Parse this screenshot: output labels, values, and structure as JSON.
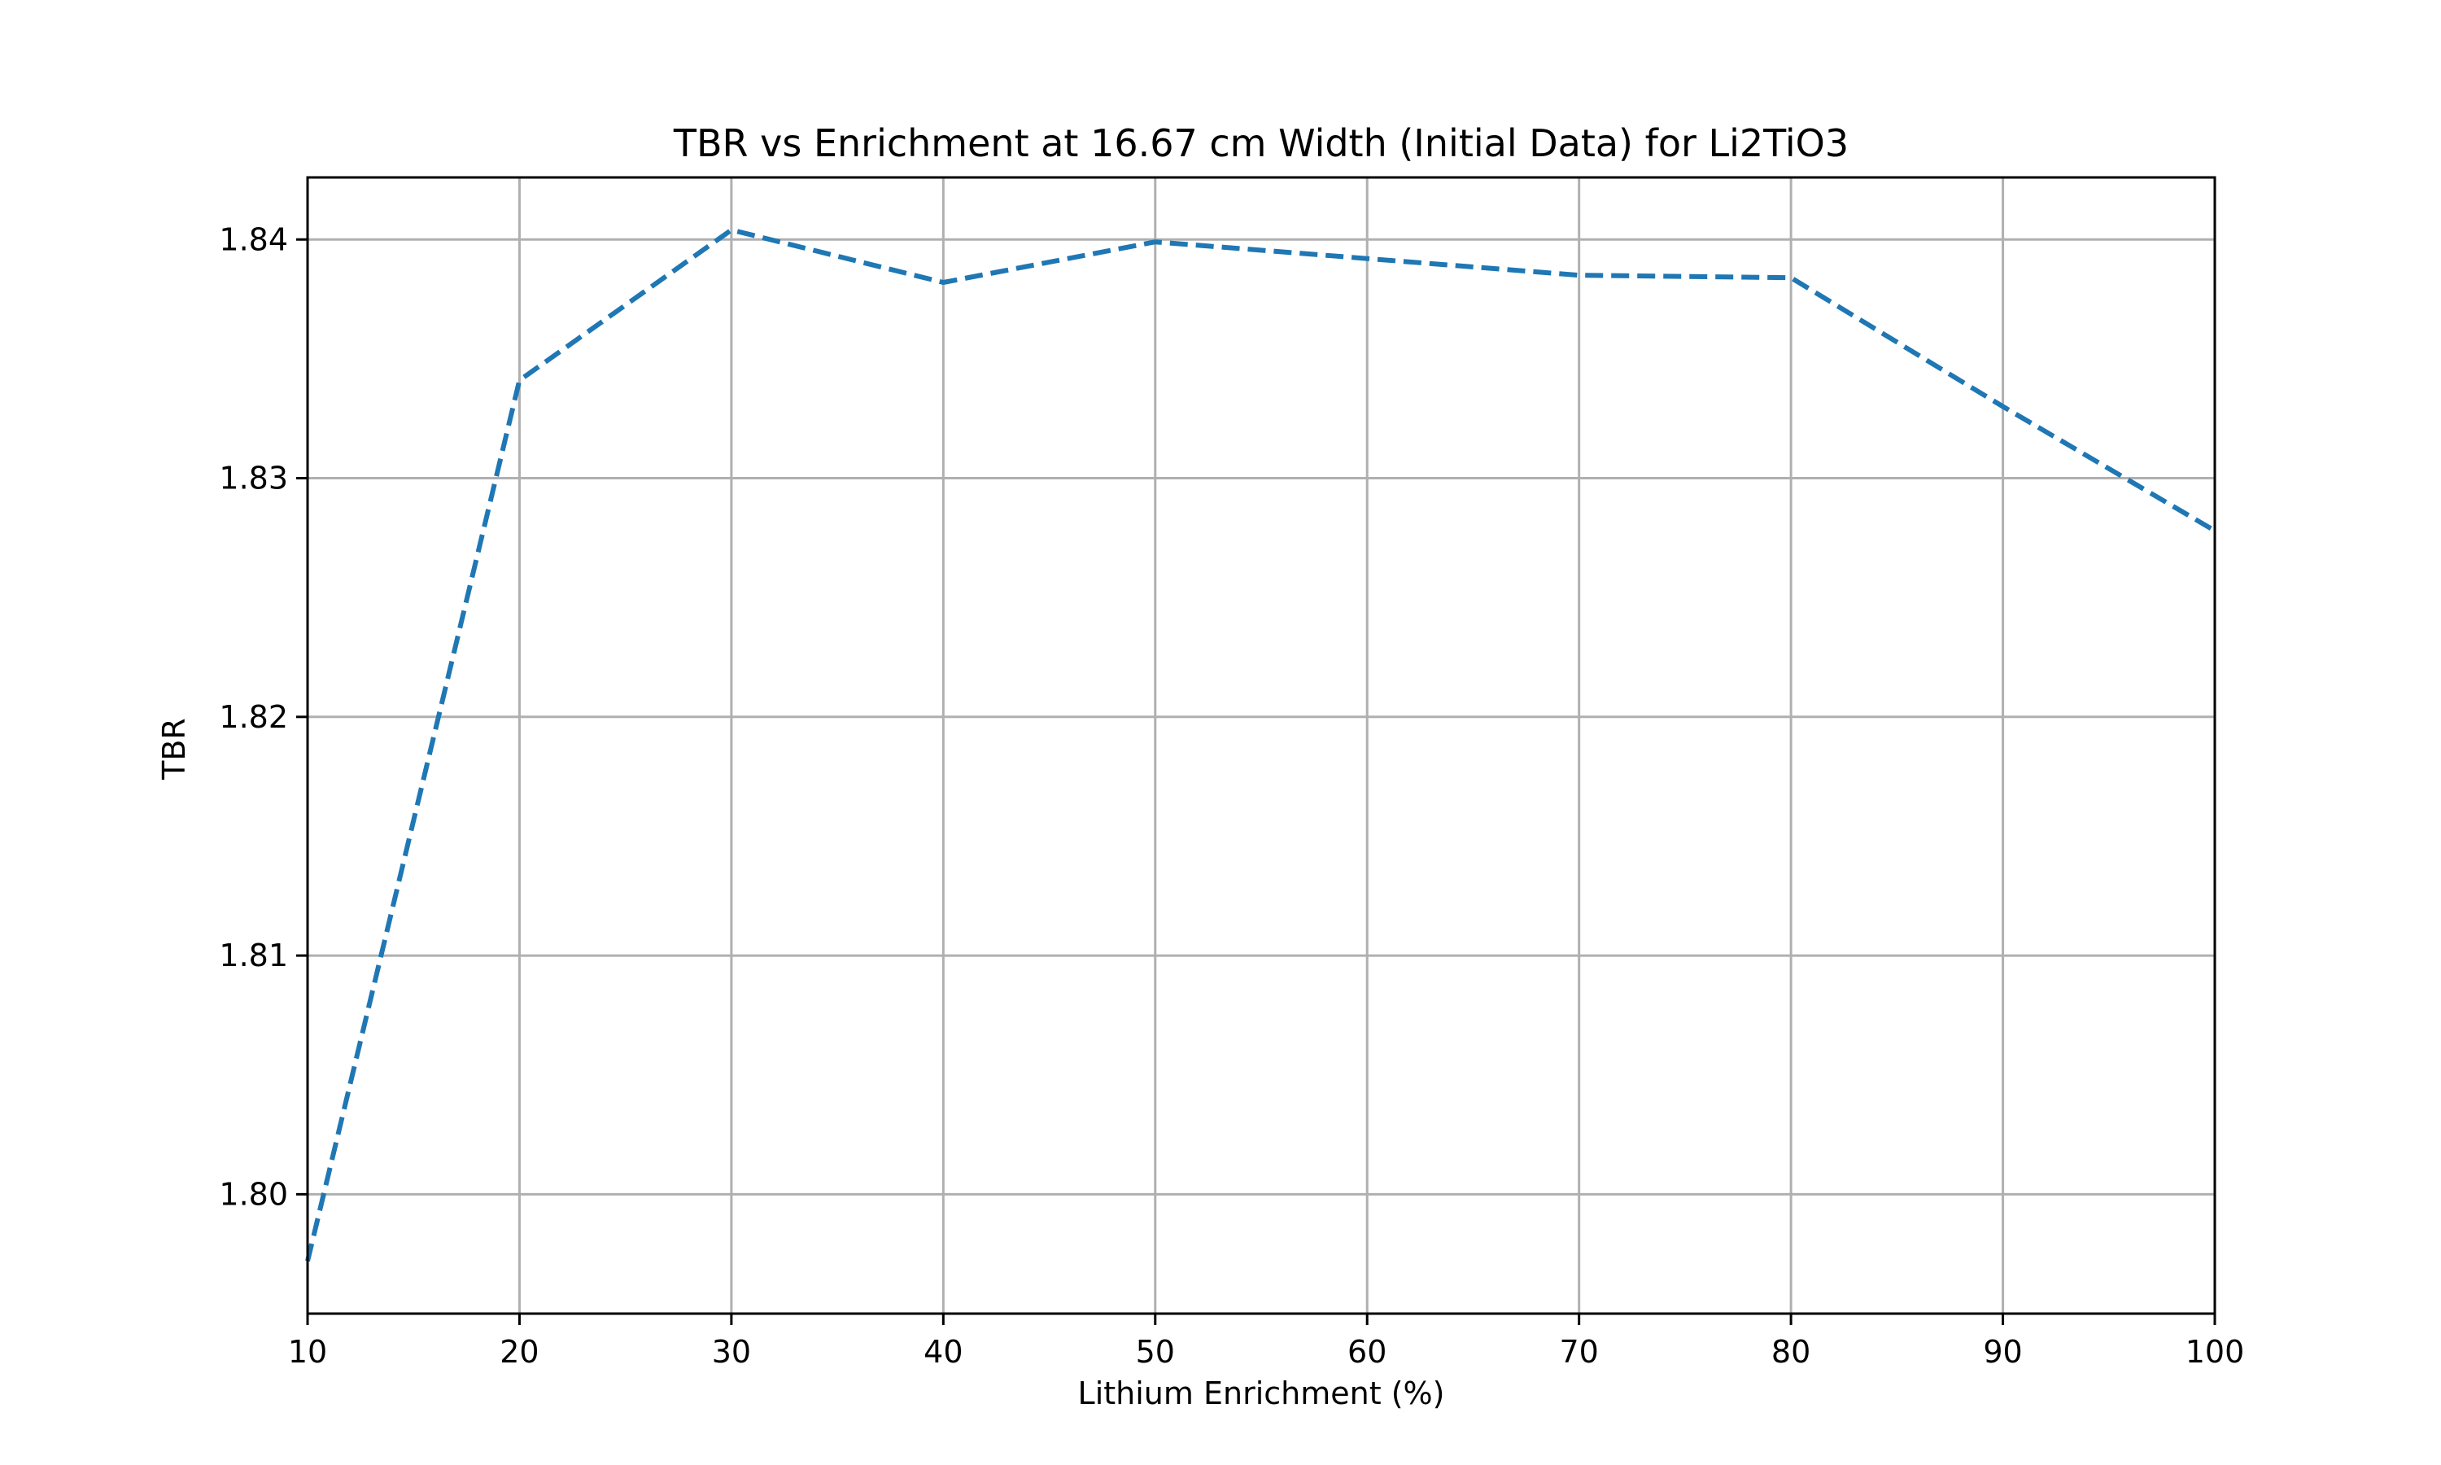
{
  "chart_data": {
    "type": "line",
    "title": "TBR vs Enrichment at 16.67 cm Width (Initial Data) for Li2TiO3",
    "xlabel": "Lithium Enrichment (%)",
    "ylabel": "TBR",
    "xlim": [
      10,
      100
    ],
    "ylim": [
      1.795,
      1.8426
    ],
    "x_ticks": [
      10,
      20,
      30,
      40,
      50,
      60,
      70,
      80,
      90,
      100
    ],
    "x_tick_labels": [
      "10",
      "20",
      "30",
      "40",
      "50",
      "60",
      "70",
      "80",
      "90",
      "100"
    ],
    "y_ticks": [
      1.8,
      1.81,
      1.82,
      1.83,
      1.84
    ],
    "y_tick_labels": [
      "1.80",
      "1.81",
      "1.82",
      "1.83",
      "1.84"
    ],
    "grid": true,
    "series": [
      {
        "color": "#1f77b4",
        "line_style": "dashed",
        "x": [
          10,
          20,
          30,
          40,
          50,
          60,
          70,
          80,
          90,
          100
        ],
        "values": [
          1.7972,
          1.8341,
          1.8404,
          1.8382,
          1.8399,
          1.8392,
          1.8385,
          1.8384,
          1.833,
          1.8278
        ]
      }
    ]
  }
}
